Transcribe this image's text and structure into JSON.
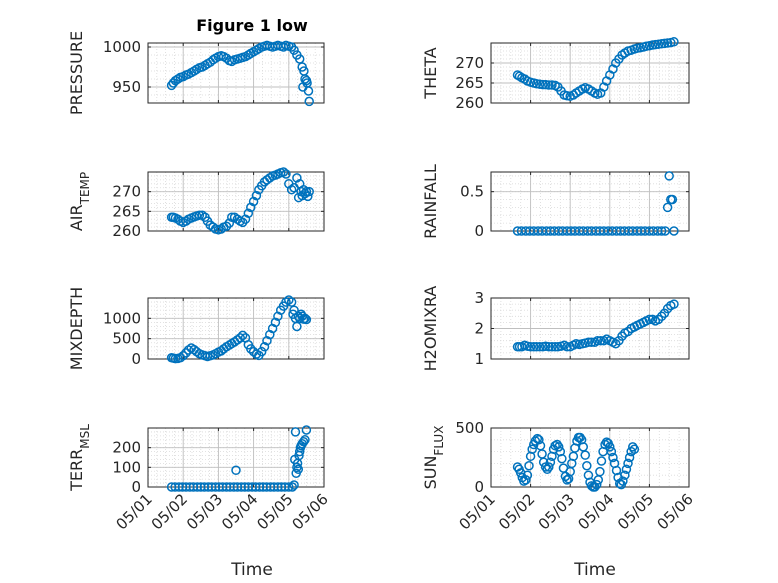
{
  "figure": {
    "title": "Figure 1 low",
    "xlabel": "Time",
    "marker_color": "#0072BD"
  },
  "chart_data": [
    {
      "type": "scatter",
      "ylabel": "PRESSURE",
      "ylim": [
        930,
        1005
      ],
      "yticks": [
        950,
        1000
      ],
      "xlim": [
        0,
        5
      ],
      "xticks": [
        "05/01",
        "05/02",
        "05/03",
        "05/04",
        "05/05",
        "05/06"
      ],
      "grid": true,
      "x": [
        0.67,
        0.72,
        0.78,
        0.85,
        0.92,
        1.0,
        1.08,
        1.15,
        1.23,
        1.31,
        1.38,
        1.46,
        1.54,
        1.62,
        1.69,
        1.77,
        1.85,
        1.92,
        2.0,
        2.08,
        2.15,
        2.23,
        2.31,
        2.38,
        2.46,
        2.54,
        2.62,
        2.69,
        2.77,
        2.85,
        2.92,
        3.0,
        3.08,
        3.15,
        3.23,
        3.31,
        3.38,
        3.46,
        3.54,
        3.62,
        3.69,
        3.77,
        3.85,
        3.92,
        4.0,
        4.08,
        4.15,
        4.23,
        4.31,
        4.38,
        4.4,
        4.43,
        4.46,
        4.5,
        4.52,
        4.56,
        4.58
      ],
      "y": [
        952,
        955,
        958,
        960,
        962,
        963,
        965,
        966,
        968,
        970,
        972,
        974,
        975,
        977,
        979,
        981,
        984,
        986,
        988,
        989,
        988,
        986,
        983,
        982,
        984,
        985,
        986,
        987,
        988,
        990,
        992,
        994,
        996,
        998,
        1000,
        1001,
        1002,
        1001,
        1000,
        1001,
        1002,
        1001,
        1000,
        1002,
        1001,
        1000,
        996,
        990,
        985,
        975,
        950,
        970,
        960,
        958,
        955,
        945,
        932
      ]
    },
    {
      "type": "scatter",
      "ylabel": "THETA",
      "ylim": [
        260,
        275
      ],
      "yticks": [
        260,
        265,
        270
      ],
      "xlim": [
        0,
        5
      ],
      "xticks": [
        "05/01",
        "05/02",
        "05/03",
        "05/04",
        "05/05",
        "05/06"
      ],
      "grid": true,
      "x": [
        0.67,
        0.72,
        0.78,
        0.85,
        0.92,
        1.0,
        1.08,
        1.15,
        1.23,
        1.31,
        1.38,
        1.46,
        1.54,
        1.62,
        1.69,
        1.77,
        1.85,
        1.92,
        2.0,
        2.08,
        2.15,
        2.23,
        2.31,
        2.38,
        2.46,
        2.54,
        2.62,
        2.69,
        2.77,
        2.85,
        2.92,
        3.0,
        3.08,
        3.15,
        3.23,
        3.31,
        3.38,
        3.46,
        3.54,
        3.62,
        3.69,
        3.77,
        3.85,
        3.92,
        4.0,
        4.08,
        4.15,
        4.23,
        4.31,
        4.38,
        4.46,
        4.54,
        4.62
      ],
      "y": [
        267,
        266.7,
        266.3,
        266,
        265.5,
        265.2,
        265,
        264.8,
        264.7,
        264.6,
        264.6,
        264.5,
        264.5,
        264.4,
        264,
        263,
        262,
        261.8,
        261.7,
        262,
        262.5,
        263,
        263.5,
        263.8,
        263.5,
        263,
        262.5,
        262.2,
        262.5,
        264,
        265.5,
        267,
        268.5,
        270,
        271,
        272,
        272.5,
        273,
        273.2,
        273.5,
        273.7,
        273.8,
        274,
        274.2,
        274.3,
        274.5,
        274.6,
        274.7,
        274.8,
        274.9,
        275,
        275.1,
        275.3
      ]
    },
    {
      "type": "scatter",
      "ylabel": "AIR_TEMP",
      "ylim": [
        260,
        275
      ],
      "yticks": [
        260,
        265,
        270
      ],
      "xlim": [
        0,
        5
      ],
      "xticks": [
        "05/01",
        "05/02",
        "05/03",
        "05/04",
        "05/05",
        "05/06"
      ],
      "grid": true,
      "x": [
        0.67,
        0.72,
        0.78,
        0.85,
        0.92,
        1.0,
        1.08,
        1.15,
        1.23,
        1.31,
        1.38,
        1.46,
        1.54,
        1.62,
        1.69,
        1.77,
        1.85,
        1.92,
        2.0,
        2.08,
        2.15,
        2.23,
        2.31,
        2.38,
        2.46,
        2.54,
        2.62,
        2.69,
        2.77,
        2.85,
        2.92,
        3.0,
        3.08,
        3.15,
        3.23,
        3.31,
        3.38,
        3.46,
        3.54,
        3.62,
        3.69,
        3.77,
        3.85,
        3.92,
        4.0,
        4.08,
        4.15,
        4.23,
        4.28,
        4.31,
        4.35,
        4.38,
        4.42,
        4.46,
        4.5,
        4.54,
        4.58
      ],
      "y": [
        263.5,
        263.5,
        263.3,
        263,
        262.5,
        262.2,
        262.5,
        263,
        263.3,
        263.6,
        263.8,
        264,
        264,
        263.5,
        262.5,
        261.5,
        261,
        260.5,
        260.3,
        260.5,
        261,
        261.2,
        262,
        263.5,
        263.5,
        263,
        262.5,
        262.2,
        263,
        264.5,
        266,
        267.5,
        269,
        270.5,
        271.5,
        272.5,
        273,
        273.5,
        274,
        274.2,
        274.5,
        274.8,
        275,
        274.5,
        272,
        270.5,
        271,
        273.5,
        268.5,
        272,
        270,
        269,
        270.5,
        269.5,
        270,
        268.8,
        270
      ]
    },
    {
      "type": "scatter",
      "ylabel": "RAINFALL",
      "ylim": [
        0,
        0.75
      ],
      "yticks": [
        0,
        0.5
      ],
      "xlim": [
        0,
        5
      ],
      "xticks": [
        "05/01",
        "05/02",
        "05/03",
        "05/04",
        "05/05",
        "05/06"
      ],
      "grid": true,
      "x": [
        0.67,
        0.77,
        0.88,
        0.98,
        1.08,
        1.19,
        1.29,
        1.4,
        1.5,
        1.6,
        1.71,
        1.81,
        1.92,
        2.02,
        2.12,
        2.23,
        2.33,
        2.44,
        2.54,
        2.65,
        2.75,
        2.85,
        2.96,
        3.06,
        3.17,
        3.27,
        3.37,
        3.48,
        3.58,
        3.69,
        3.79,
        3.89,
        4.0,
        4.1,
        4.21,
        4.31,
        4.4,
        4.46,
        4.5,
        4.54,
        4.58,
        4.62
      ],
      "y": [
        0,
        0,
        0,
        0,
        0,
        0,
        0,
        0,
        0,
        0,
        0,
        0,
        0,
        0,
        0,
        0,
        0,
        0,
        0,
        0,
        0,
        0,
        0,
        0,
        0,
        0,
        0,
        0,
        0,
        0,
        0,
        0,
        0,
        0,
        0,
        0,
        0,
        0.3,
        0.7,
        0.4,
        0.4,
        0
      ]
    },
    {
      "type": "scatter",
      "ylabel": "MIXDEPTH",
      "ylim": [
        0,
        1500
      ],
      "yticks": [
        0,
        500,
        1000
      ],
      "xlim": [
        0,
        5
      ],
      "xticks": [
        "05/01",
        "05/02",
        "05/03",
        "05/04",
        "05/05",
        "05/06"
      ],
      "grid": true,
      "x": [
        0.67,
        0.72,
        0.78,
        0.85,
        0.92,
        1.0,
        1.08,
        1.15,
        1.23,
        1.31,
        1.38,
        1.46,
        1.54,
        1.62,
        1.69,
        1.77,
        1.85,
        1.92,
        2.0,
        2.08,
        2.15,
        2.23,
        2.31,
        2.38,
        2.46,
        2.54,
        2.62,
        2.69,
        2.77,
        2.85,
        2.92,
        3.0,
        3.08,
        3.15,
        3.23,
        3.31,
        3.38,
        3.46,
        3.54,
        3.62,
        3.69,
        3.77,
        3.85,
        3.92,
        4.0,
        4.08,
        4.12,
        4.15,
        4.19,
        4.23,
        4.27,
        4.31,
        4.35,
        4.38,
        4.42,
        4.46,
        4.5
      ],
      "y": [
        30,
        20,
        10,
        15,
        30,
        80,
        150,
        220,
        270,
        230,
        180,
        130,
        100,
        80,
        60,
        80,
        100,
        130,
        170,
        200,
        250,
        300,
        340,
        380,
        420,
        470,
        520,
        580,
        520,
        350,
        250,
        180,
        120,
        90,
        180,
        300,
        450,
        600,
        750,
        900,
        1050,
        1200,
        1300,
        1400,
        1450,
        1400,
        1100,
        1200,
        1000,
        800,
        1050,
        1000,
        1100,
        1050,
        980,
        1000,
        970
      ]
    },
    {
      "type": "scatter",
      "ylabel": "H2OMIXRA",
      "ylim": [
        1,
        3
      ],
      "yticks": [
        1,
        2,
        3
      ],
      "xlim": [
        0,
        5
      ],
      "xticks": [
        "05/01",
        "05/02",
        "05/03",
        "05/04",
        "05/05",
        "05/06"
      ],
      "grid": true,
      "x": [
        0.67,
        0.72,
        0.78,
        0.85,
        0.92,
        1.0,
        1.08,
        1.15,
        1.23,
        1.31,
        1.38,
        1.46,
        1.54,
        1.62,
        1.69,
        1.77,
        1.85,
        1.92,
        2.0,
        2.08,
        2.15,
        2.23,
        2.31,
        2.38,
        2.46,
        2.54,
        2.62,
        2.69,
        2.77,
        2.85,
        2.92,
        3.0,
        3.08,
        3.15,
        3.23,
        3.31,
        3.38,
        3.46,
        3.54,
        3.62,
        3.69,
        3.77,
        3.85,
        3.92,
        4.0,
        4.08,
        4.15,
        4.23,
        4.31,
        4.38,
        4.46,
        4.54,
        4.62
      ],
      "y": [
        1.4,
        1.4,
        1.4,
        1.45,
        1.42,
        1.4,
        1.4,
        1.4,
        1.4,
        1.4,
        1.42,
        1.4,
        1.4,
        1.4,
        1.4,
        1.42,
        1.45,
        1.4,
        1.4,
        1.45,
        1.5,
        1.48,
        1.5,
        1.52,
        1.55,
        1.55,
        1.55,
        1.6,
        1.6,
        1.6,
        1.65,
        1.6,
        1.55,
        1.5,
        1.6,
        1.75,
        1.85,
        1.9,
        2.0,
        2.05,
        2.1,
        2.15,
        2.2,
        2.25,
        2.3,
        2.3,
        2.25,
        2.3,
        2.4,
        2.5,
        2.65,
        2.75,
        2.8
      ]
    },
    {
      "type": "scatter",
      "ylabel": "TERR_MSL",
      "ylim": [
        0,
        300
      ],
      "yticks": [
        0,
        100,
        200
      ],
      "xlim": [
        0,
        5
      ],
      "xticks": [
        "05/01",
        "05/02",
        "05/03",
        "05/04",
        "05/05",
        "05/06"
      ],
      "grid": true,
      "x": [
        0.67,
        0.77,
        0.88,
        0.98,
        1.08,
        1.19,
        1.29,
        1.4,
        1.5,
        1.6,
        1.71,
        1.81,
        1.92,
        2.02,
        2.12,
        2.23,
        2.33,
        2.44,
        2.5,
        2.54,
        2.65,
        2.75,
        2.85,
        2.96,
        3.06,
        3.17,
        3.27,
        3.37,
        3.48,
        3.58,
        3.69,
        3.79,
        3.89,
        4.0,
        4.1,
        4.15,
        4.17,
        4.19,
        4.21,
        4.23,
        4.25,
        4.27,
        4.29,
        4.31,
        4.33,
        4.35,
        4.38,
        4.42,
        4.46,
        4.5
      ],
      "y": [
        0,
        0,
        0,
        0,
        0,
        0,
        0,
        0,
        0,
        0,
        0,
        0,
        0,
        0,
        0,
        0,
        0,
        0,
        85,
        0,
        0,
        0,
        0,
        0,
        0,
        0,
        0,
        0,
        0,
        0,
        0,
        0,
        0,
        0,
        0,
        10,
        140,
        280,
        70,
        100,
        120,
        90,
        160,
        180,
        200,
        210,
        220,
        230,
        240,
        290
      ]
    },
    {
      "type": "scatter",
      "ylabel": "SUN_FLUX",
      "ylim": [
        0,
        500
      ],
      "yticks": [
        0,
        500
      ],
      "xlim": [
        0,
        5
      ],
      "xticks": [
        "05/01",
        "05/02",
        "05/03",
        "05/04",
        "05/05",
        "05/06"
      ],
      "grid": true,
      "x": [
        0.67,
        0.71,
        0.75,
        0.79,
        0.83,
        0.88,
        0.92,
        0.96,
        1.0,
        1.04,
        1.08,
        1.12,
        1.17,
        1.21,
        1.25,
        1.29,
        1.33,
        1.38,
        1.42,
        1.46,
        1.5,
        1.54,
        1.58,
        1.62,
        1.67,
        1.71,
        1.75,
        1.79,
        1.83,
        1.88,
        1.92,
        1.96,
        2.0,
        2.04,
        2.08,
        2.12,
        2.17,
        2.21,
        2.25,
        2.29,
        2.33,
        2.38,
        2.42,
        2.46,
        2.5,
        2.54,
        2.58,
        2.62,
        2.67,
        2.71,
        2.75,
        2.79,
        2.83,
        2.88,
        2.92,
        2.96,
        3.0,
        3.04,
        3.08,
        3.12,
        3.17,
        3.21,
        3.25,
        3.29,
        3.33,
        3.38,
        3.42,
        3.46,
        3.5,
        3.54,
        3.58,
        3.62
      ],
      "y": [
        170,
        150,
        120,
        80,
        50,
        60,
        100,
        180,
        260,
        320,
        360,
        390,
        410,
        400,
        350,
        280,
        210,
        170,
        150,
        170,
        210,
        260,
        320,
        350,
        360,
        340,
        300,
        240,
        160,
        90,
        60,
        70,
        130,
        200,
        260,
        330,
        390,
        420,
        420,
        400,
        340,
        270,
        180,
        100,
        40,
        10,
        0,
        0,
        20,
        60,
        130,
        220,
        300,
        360,
        380,
        370,
        340,
        300,
        250,
        200,
        140,
        80,
        30,
        20,
        50,
        100,
        150,
        200,
        250,
        300,
        340,
        320
      ]
    }
  ]
}
